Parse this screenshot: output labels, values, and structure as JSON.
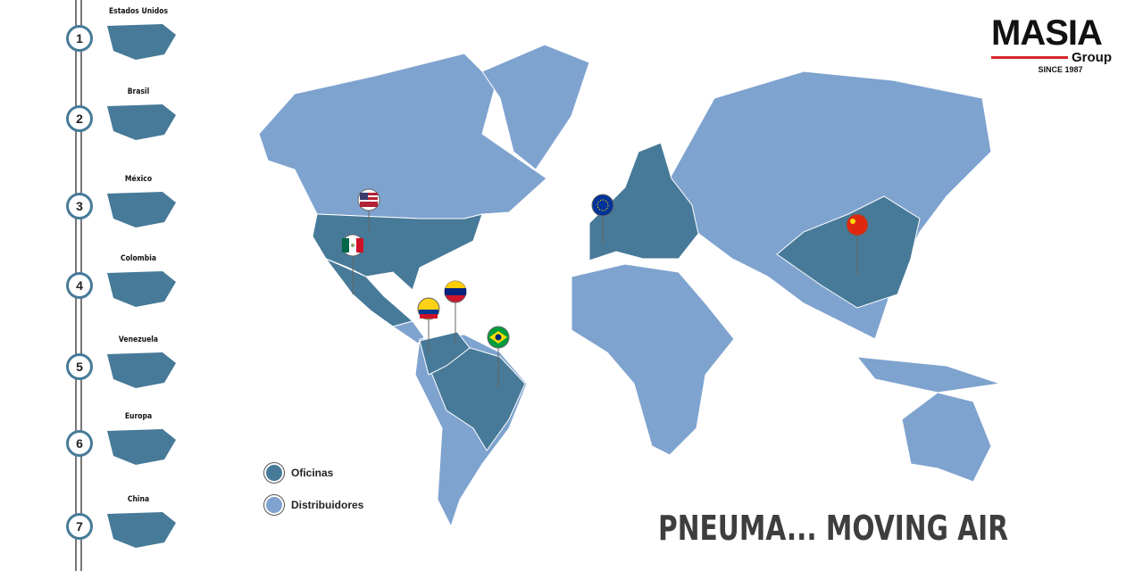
{
  "colors": {
    "oficinas": "#477a98",
    "distribuidores": "#7fa3cf",
    "accent": "#d8252a"
  },
  "sidebar": {
    "items": [
      {
        "number": "1",
        "label": "Estados Unidos"
      },
      {
        "number": "2",
        "label": "Brasil"
      },
      {
        "number": "3",
        "label": "México"
      },
      {
        "number": "4",
        "label": "Colombia"
      },
      {
        "number": "5",
        "label": "Venezuela"
      },
      {
        "number": "6",
        "label": "Europa"
      },
      {
        "number": "7",
        "label": "China"
      }
    ]
  },
  "legend": {
    "offices": "Oficinas",
    "distributors": "Distribuidores"
  },
  "logo": {
    "name": "MASIA",
    "sub": "Group",
    "since": "SINCE 1987"
  },
  "slogan": "PNEUMA... MOVING AIR",
  "pins": [
    "united-states-flag",
    "mexico-flag",
    "venezuela-flag",
    "colombia-flag",
    "brazil-flag",
    "european-union-flag",
    "china-flag"
  ]
}
